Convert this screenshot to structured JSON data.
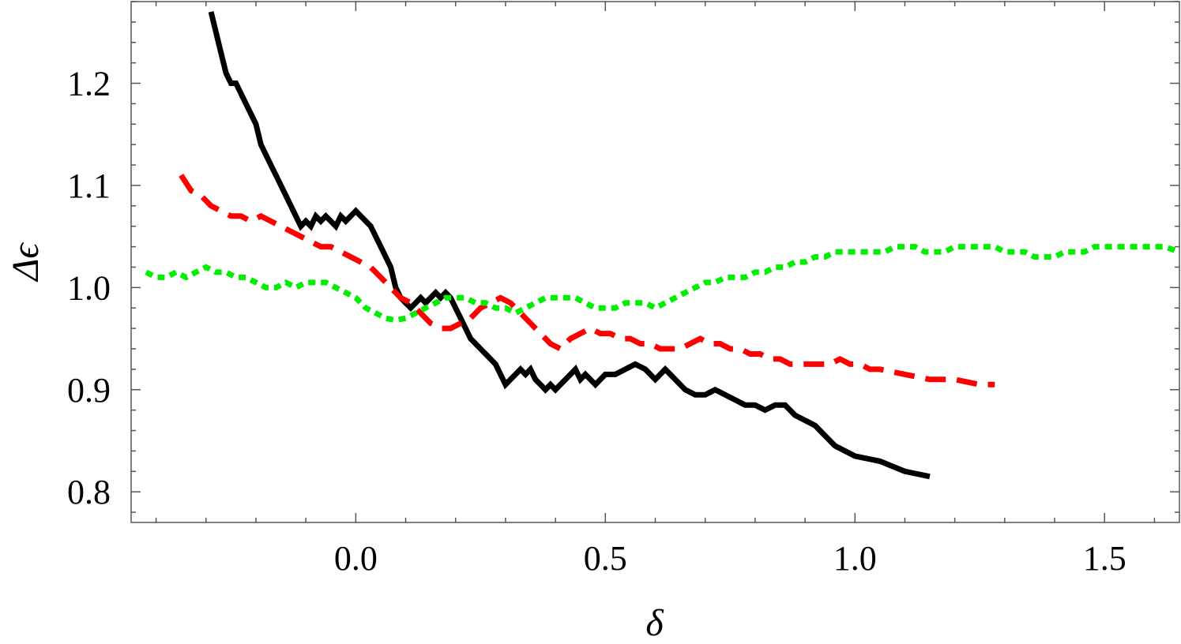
{
  "chart_data": {
    "type": "line",
    "title": "",
    "xlabel": "δ",
    "ylabel": "Δϵ",
    "xlim": [
      -0.45,
      1.65
    ],
    "ylim": [
      0.77,
      1.28
    ],
    "xticks": [
      {
        "value": 0.0,
        "label": "0.0"
      },
      {
        "value": 0.5,
        "label": "0.5"
      },
      {
        "value": 1.0,
        "label": "1.0"
      },
      {
        "value": 1.5,
        "label": "1.5"
      }
    ],
    "yticks": [
      {
        "value": 0.8,
        "label": "0.8"
      },
      {
        "value": 0.9,
        "label": "0.9"
      },
      {
        "value": 1.0,
        "label": "1.0"
      },
      {
        "value": 1.1,
        "label": "1.1"
      },
      {
        "value": 1.2,
        "label": "1.2"
      }
    ],
    "grid": false,
    "legend": "none",
    "series": [
      {
        "color": "#000000",
        "style": "solid",
        "points": [
          [
            -0.29,
            1.27
          ],
          [
            -0.28,
            1.25
          ],
          [
            -0.27,
            1.23
          ],
          [
            -0.26,
            1.21
          ],
          [
            -0.25,
            1.2
          ],
          [
            -0.24,
            1.2
          ],
          [
            -0.23,
            1.19
          ],
          [
            -0.22,
            1.18
          ],
          [
            -0.21,
            1.17
          ],
          [
            -0.2,
            1.16
          ],
          [
            -0.19,
            1.14
          ],
          [
            -0.18,
            1.13
          ],
          [
            -0.17,
            1.12
          ],
          [
            -0.16,
            1.11
          ],
          [
            -0.15,
            1.1
          ],
          [
            -0.14,
            1.09
          ],
          [
            -0.13,
            1.08
          ],
          [
            -0.12,
            1.07
          ],
          [
            -0.11,
            1.06
          ],
          [
            -0.1,
            1.065
          ],
          [
            -0.09,
            1.06
          ],
          [
            -0.08,
            1.07
          ],
          [
            -0.07,
            1.065
          ],
          [
            -0.06,
            1.07
          ],
          [
            -0.05,
            1.065
          ],
          [
            -0.04,
            1.06
          ],
          [
            -0.03,
            1.07
          ],
          [
            -0.02,
            1.065
          ],
          [
            -0.01,
            1.07
          ],
          [
            0.0,
            1.075
          ],
          [
            0.01,
            1.07
          ],
          [
            0.02,
            1.065
          ],
          [
            0.03,
            1.06
          ],
          [
            0.04,
            1.05
          ],
          [
            0.05,
            1.04
          ],
          [
            0.06,
            1.03
          ],
          [
            0.07,
            1.02
          ],
          [
            0.08,
            1.0
          ],
          [
            0.09,
            0.99
          ],
          [
            0.1,
            0.985
          ],
          [
            0.11,
            0.98
          ],
          [
            0.12,
            0.985
          ],
          [
            0.13,
            0.99
          ],
          [
            0.14,
            0.985
          ],
          [
            0.15,
            0.99
          ],
          [
            0.16,
            0.995
          ],
          [
            0.17,
            0.99
          ],
          [
            0.18,
            0.995
          ],
          [
            0.19,
            0.99
          ],
          [
            0.2,
            0.98
          ],
          [
            0.21,
            0.97
          ],
          [
            0.22,
            0.96
          ],
          [
            0.23,
            0.95
          ],
          [
            0.24,
            0.945
          ],
          [
            0.25,
            0.94
          ],
          [
            0.26,
            0.935
          ],
          [
            0.27,
            0.93
          ],
          [
            0.28,
            0.925
          ],
          [
            0.29,
            0.915
          ],
          [
            0.3,
            0.905
          ],
          [
            0.31,
            0.91
          ],
          [
            0.32,
            0.915
          ],
          [
            0.33,
            0.92
          ],
          [
            0.34,
            0.915
          ],
          [
            0.35,
            0.92
          ],
          [
            0.36,
            0.91
          ],
          [
            0.37,
            0.905
          ],
          [
            0.38,
            0.9
          ],
          [
            0.39,
            0.905
          ],
          [
            0.4,
            0.9
          ],
          [
            0.41,
            0.905
          ],
          [
            0.42,
            0.91
          ],
          [
            0.43,
            0.915
          ],
          [
            0.44,
            0.92
          ],
          [
            0.45,
            0.91
          ],
          [
            0.46,
            0.915
          ],
          [
            0.47,
            0.91
          ],
          [
            0.48,
            0.905
          ],
          [
            0.49,
            0.91
          ],
          [
            0.5,
            0.915
          ],
          [
            0.52,
            0.915
          ],
          [
            0.54,
            0.92
          ],
          [
            0.56,
            0.925
          ],
          [
            0.58,
            0.92
          ],
          [
            0.6,
            0.91
          ],
          [
            0.62,
            0.92
          ],
          [
            0.64,
            0.91
          ],
          [
            0.66,
            0.9
          ],
          [
            0.68,
            0.895
          ],
          [
            0.7,
            0.895
          ],
          [
            0.72,
            0.9
          ],
          [
            0.74,
            0.895
          ],
          [
            0.76,
            0.89
          ],
          [
            0.78,
            0.885
          ],
          [
            0.8,
            0.885
          ],
          [
            0.82,
            0.88
          ],
          [
            0.84,
            0.885
          ],
          [
            0.86,
            0.885
          ],
          [
            0.88,
            0.875
          ],
          [
            0.9,
            0.87
          ],
          [
            0.92,
            0.865
          ],
          [
            0.94,
            0.855
          ],
          [
            0.96,
            0.845
          ],
          [
            0.98,
            0.84
          ],
          [
            1.0,
            0.835
          ],
          [
            1.05,
            0.83
          ],
          [
            1.1,
            0.82
          ],
          [
            1.15,
            0.815
          ]
        ]
      },
      {
        "color": "#ff0000",
        "style": "dashed",
        "points": [
          [
            -0.35,
            1.11
          ],
          [
            -0.33,
            1.095
          ],
          [
            -0.31,
            1.09
          ],
          [
            -0.29,
            1.08
          ],
          [
            -0.27,
            1.075
          ],
          [
            -0.25,
            1.07
          ],
          [
            -0.23,
            1.07
          ],
          [
            -0.21,
            1.065
          ],
          [
            -0.19,
            1.07
          ],
          [
            -0.17,
            1.065
          ],
          [
            -0.15,
            1.06
          ],
          [
            -0.13,
            1.055
          ],
          [
            -0.11,
            1.05
          ],
          [
            -0.09,
            1.045
          ],
          [
            -0.07,
            1.04
          ],
          [
            -0.05,
            1.04
          ],
          [
            -0.03,
            1.035
          ],
          [
            -0.01,
            1.03
          ],
          [
            0.01,
            1.025
          ],
          [
            0.03,
            1.02
          ],
          [
            0.05,
            1.01
          ],
          [
            0.07,
            1.0
          ],
          [
            0.09,
            0.99
          ],
          [
            0.11,
            0.985
          ],
          [
            0.13,
            0.975
          ],
          [
            0.15,
            0.965
          ],
          [
            0.17,
            0.96
          ],
          [
            0.19,
            0.96
          ],
          [
            0.21,
            0.965
          ],
          [
            0.23,
            0.97
          ],
          [
            0.25,
            0.98
          ],
          [
            0.27,
            0.985
          ],
          [
            0.29,
            0.99
          ],
          [
            0.31,
            0.985
          ],
          [
            0.33,
            0.975
          ],
          [
            0.35,
            0.965
          ],
          [
            0.37,
            0.955
          ],
          [
            0.39,
            0.945
          ],
          [
            0.41,
            0.94
          ],
          [
            0.43,
            0.95
          ],
          [
            0.45,
            0.955
          ],
          [
            0.47,
            0.96
          ],
          [
            0.49,
            0.955
          ],
          [
            0.51,
            0.955
          ],
          [
            0.53,
            0.95
          ],
          [
            0.55,
            0.95
          ],
          [
            0.57,
            0.945
          ],
          [
            0.59,
            0.945
          ],
          [
            0.61,
            0.94
          ],
          [
            0.63,
            0.94
          ],
          [
            0.65,
            0.94
          ],
          [
            0.67,
            0.945
          ],
          [
            0.69,
            0.95
          ],
          [
            0.71,
            0.945
          ],
          [
            0.73,
            0.945
          ],
          [
            0.75,
            0.94
          ],
          [
            0.77,
            0.94
          ],
          [
            0.79,
            0.935
          ],
          [
            0.81,
            0.935
          ],
          [
            0.83,
            0.93
          ],
          [
            0.85,
            0.93
          ],
          [
            0.87,
            0.925
          ],
          [
            0.89,
            0.925
          ],
          [
            0.91,
            0.925
          ],
          [
            0.93,
            0.925
          ],
          [
            0.95,
            0.925
          ],
          [
            0.97,
            0.93
          ],
          [
            0.99,
            0.925
          ],
          [
            1.01,
            0.925
          ],
          [
            1.03,
            0.92
          ],
          [
            1.05,
            0.92
          ],
          [
            1.1,
            0.915
          ],
          [
            1.15,
            0.91
          ],
          [
            1.2,
            0.91
          ],
          [
            1.25,
            0.905
          ],
          [
            1.28,
            0.905
          ]
        ]
      },
      {
        "color": "#00ee00",
        "style": "dotted",
        "points": [
          [
            -0.42,
            1.015
          ],
          [
            -0.4,
            1.01
          ],
          [
            -0.38,
            1.01
          ],
          [
            -0.36,
            1.015
          ],
          [
            -0.34,
            1.01
          ],
          [
            -0.32,
            1.015
          ],
          [
            -0.3,
            1.02
          ],
          [
            -0.28,
            1.015
          ],
          [
            -0.26,
            1.015
          ],
          [
            -0.24,
            1.01
          ],
          [
            -0.22,
            1.01
          ],
          [
            -0.2,
            1.005
          ],
          [
            -0.18,
            1.0
          ],
          [
            -0.16,
            1.0
          ],
          [
            -0.14,
            1.005
          ],
          [
            -0.12,
            1.0
          ],
          [
            -0.1,
            1.005
          ],
          [
            -0.08,
            1.005
          ],
          [
            -0.06,
            1.005
          ],
          [
            -0.04,
            1.0
          ],
          [
            -0.02,
            0.995
          ],
          [
            0.0,
            0.99
          ],
          [
            0.02,
            0.98
          ],
          [
            0.04,
            0.975
          ],
          [
            0.06,
            0.97
          ],
          [
            0.08,
            0.968
          ],
          [
            0.1,
            0.97
          ],
          [
            0.12,
            0.975
          ],
          [
            0.14,
            0.98
          ],
          [
            0.16,
            0.985
          ],
          [
            0.18,
            0.99
          ],
          [
            0.2,
            0.99
          ],
          [
            0.22,
            0.99
          ],
          [
            0.24,
            0.985
          ],
          [
            0.26,
            0.985
          ],
          [
            0.28,
            0.98
          ],
          [
            0.3,
            0.98
          ],
          [
            0.32,
            0.975
          ],
          [
            0.34,
            0.98
          ],
          [
            0.36,
            0.985
          ],
          [
            0.38,
            0.99
          ],
          [
            0.4,
            0.99
          ],
          [
            0.42,
            0.99
          ],
          [
            0.44,
            0.99
          ],
          [
            0.46,
            0.985
          ],
          [
            0.48,
            0.98
          ],
          [
            0.5,
            0.98
          ],
          [
            0.52,
            0.98
          ],
          [
            0.54,
            0.985
          ],
          [
            0.56,
            0.985
          ],
          [
            0.58,
            0.985
          ],
          [
            0.6,
            0.98
          ],
          [
            0.62,
            0.985
          ],
          [
            0.64,
            0.99
          ],
          [
            0.66,
            0.995
          ],
          [
            0.68,
            1.0
          ],
          [
            0.7,
            1.005
          ],
          [
            0.72,
            1.005
          ],
          [
            0.74,
            1.01
          ],
          [
            0.76,
            1.01
          ],
          [
            0.78,
            1.01
          ],
          [
            0.8,
            1.015
          ],
          [
            0.82,
            1.015
          ],
          [
            0.84,
            1.02
          ],
          [
            0.86,
            1.02
          ],
          [
            0.88,
            1.025
          ],
          [
            0.9,
            1.025
          ],
          [
            0.92,
            1.03
          ],
          [
            0.94,
            1.03
          ],
          [
            0.96,
            1.035
          ],
          [
            0.98,
            1.035
          ],
          [
            1.0,
            1.035
          ],
          [
            1.02,
            1.035
          ],
          [
            1.04,
            1.035
          ],
          [
            1.06,
            1.035
          ],
          [
            1.08,
            1.04
          ],
          [
            1.1,
            1.04
          ],
          [
            1.12,
            1.04
          ],
          [
            1.14,
            1.035
          ],
          [
            1.16,
            1.035
          ],
          [
            1.18,
            1.035
          ],
          [
            1.2,
            1.04
          ],
          [
            1.22,
            1.04
          ],
          [
            1.24,
            1.04
          ],
          [
            1.26,
            1.04
          ],
          [
            1.28,
            1.04
          ],
          [
            1.3,
            1.035
          ],
          [
            1.32,
            1.035
          ],
          [
            1.34,
            1.035
          ],
          [
            1.36,
            1.03
          ],
          [
            1.38,
            1.03
          ],
          [
            1.4,
            1.03
          ],
          [
            1.42,
            1.035
          ],
          [
            1.44,
            1.035
          ],
          [
            1.46,
            1.035
          ],
          [
            1.48,
            1.04
          ],
          [
            1.5,
            1.04
          ],
          [
            1.52,
            1.04
          ],
          [
            1.54,
            1.04
          ],
          [
            1.56,
            1.04
          ],
          [
            1.58,
            1.04
          ],
          [
            1.6,
            1.04
          ],
          [
            1.62,
            1.04
          ],
          [
            1.65,
            1.035
          ]
        ]
      }
    ]
  }
}
